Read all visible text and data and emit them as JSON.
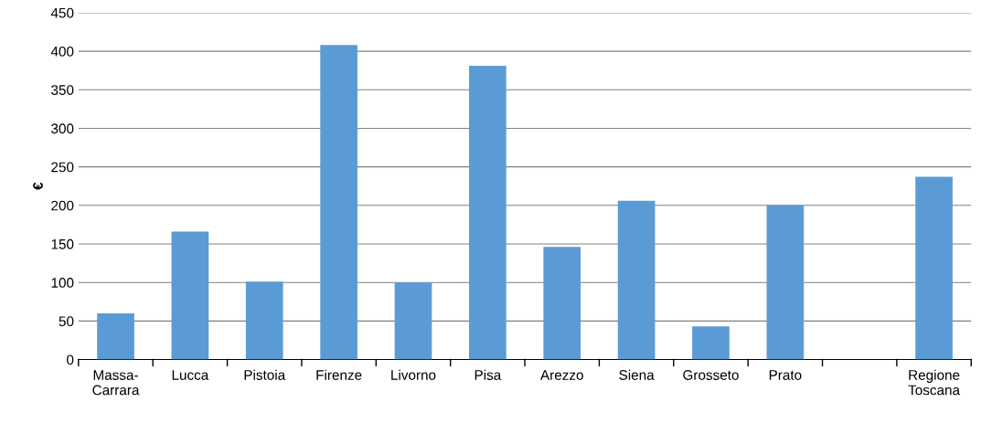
{
  "chart_data": {
    "type": "bar",
    "ylabel": "€",
    "categories": [
      "Massa-\nCarrara",
      "Lucca",
      "Pistoia",
      "Firenze",
      "Livorno",
      "Pisa",
      "Arezzo",
      "Siena",
      "Grosseto",
      "Prato",
      null,
      "Regione\nToscana"
    ],
    "values": [
      60,
      166,
      101,
      408,
      100,
      381,
      146,
      206,
      43,
      200,
      null,
      237
    ],
    "color": "#5b9bd5",
    "ylim": [
      0,
      450
    ],
    "yticks": [
      0,
      50,
      100,
      150,
      200,
      250,
      300,
      350,
      400,
      450
    ],
    "grid": "y",
    "legend": false
  }
}
